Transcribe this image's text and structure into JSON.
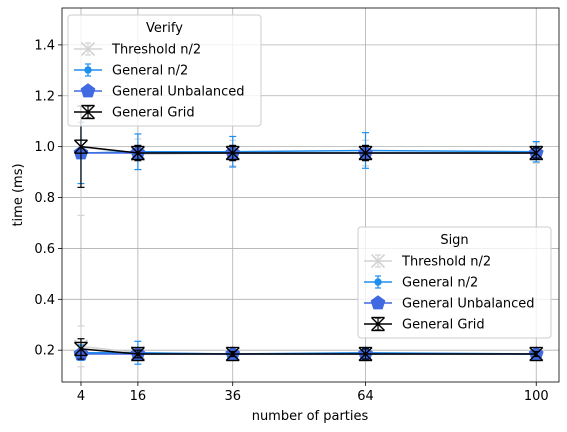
{
  "chart_data": {
    "type": "line",
    "title": "",
    "xlabel": "number of parties",
    "ylabel": "time (ms)",
    "x": [
      4,
      16,
      36,
      64,
      100
    ],
    "xticks": [
      "4",
      "16",
      "36",
      "64",
      "100"
    ],
    "yticks": [
      "0.2",
      "0.4",
      "0.6",
      "0.8",
      "1.0",
      "1.2",
      "1.4"
    ],
    "xlim": [
      0,
      104.8
    ],
    "ylim": [
      0.075,
      1.545
    ],
    "grid": true,
    "groups": [
      {
        "legend_title": "Verify",
        "legend_position": "top-left",
        "series": [
          {
            "name": "Threshold n/2",
            "color": "#d3d3d3",
            "marker": "x",
            "values": [
              1.0,
              0.97,
              0.975,
              0.975,
              0.975
            ],
            "errors": [
              0.27,
              0.06,
              0.05,
              0.05,
              0.04
            ]
          },
          {
            "name": "General n/2",
            "color": "#1f8fef",
            "marker": "circle",
            "values": [
              0.975,
              0.98,
              0.98,
              0.985,
              0.98
            ],
            "errors": [
              0.12,
              0.07,
              0.06,
              0.07,
              0.04
            ]
          },
          {
            "name": "General Unbalanced",
            "color": "#4169e1",
            "marker": "pentagon",
            "values": [
              0.975,
              0.975,
              0.975,
              0.975,
              0.975
            ],
            "errors": [
              0.0,
              0.0,
              0.0,
              0.0,
              0.0
            ]
          },
          {
            "name": "General Grid",
            "color": "#000000",
            "marker": "xbar",
            "values": [
              1.0,
              0.975,
              0.975,
              0.975,
              0.975
            ],
            "errors": [
              0.16,
              0.03,
              0.03,
              0.03,
              0.02
            ]
          }
        ]
      },
      {
        "legend_title": "Sign",
        "legend_position": "center-right",
        "series": [
          {
            "name": "Threshold n/2",
            "color": "#d3d3d3",
            "marker": "x",
            "values": [
              0.215,
              0.19,
              0.185,
              0.185,
              0.185
            ],
            "errors": [
              0.08,
              0.02,
              0.01,
              0.01,
              0.01
            ]
          },
          {
            "name": "General n/2",
            "color": "#1f8fef",
            "marker": "circle",
            "values": [
              0.19,
              0.19,
              0.185,
              0.19,
              0.185
            ],
            "errors": [
              0.03,
              0.045,
              0.01,
              0.02,
              0.01
            ]
          },
          {
            "name": "General Unbalanced",
            "color": "#4169e1",
            "marker": "pentagon",
            "values": [
              0.185,
              0.185,
              0.185,
              0.185,
              0.185
            ],
            "errors": [
              0.0,
              0.0,
              0.0,
              0.0,
              0.0
            ]
          },
          {
            "name": "General Grid",
            "color": "#000000",
            "marker": "xbar",
            "values": [
              0.205,
              0.185,
              0.185,
              0.185,
              0.185
            ],
            "errors": [
              0.04,
              0.015,
              0.01,
              0.02,
              0.01
            ]
          }
        ]
      }
    ]
  }
}
